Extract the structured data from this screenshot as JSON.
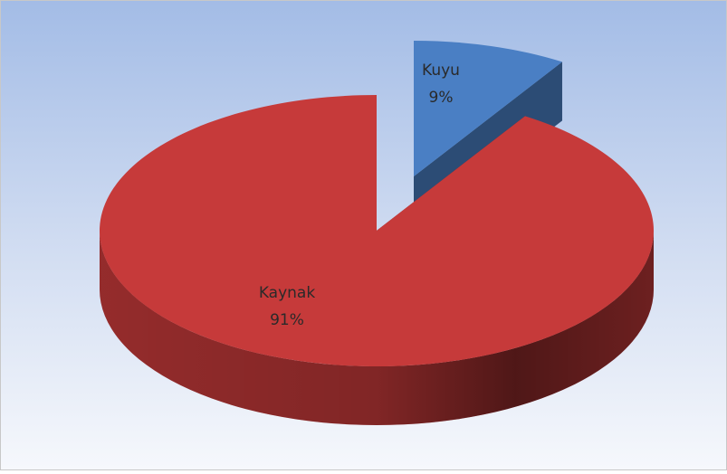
{
  "chart_data": {
    "type": "pie",
    "categories": [
      "Kuyu",
      "Kaynak"
    ],
    "values": [
      9,
      91
    ],
    "value_labels": [
      "9%",
      "91%"
    ],
    "colors": [
      "#4a7fc4",
      "#c63a3a"
    ]
  }
}
